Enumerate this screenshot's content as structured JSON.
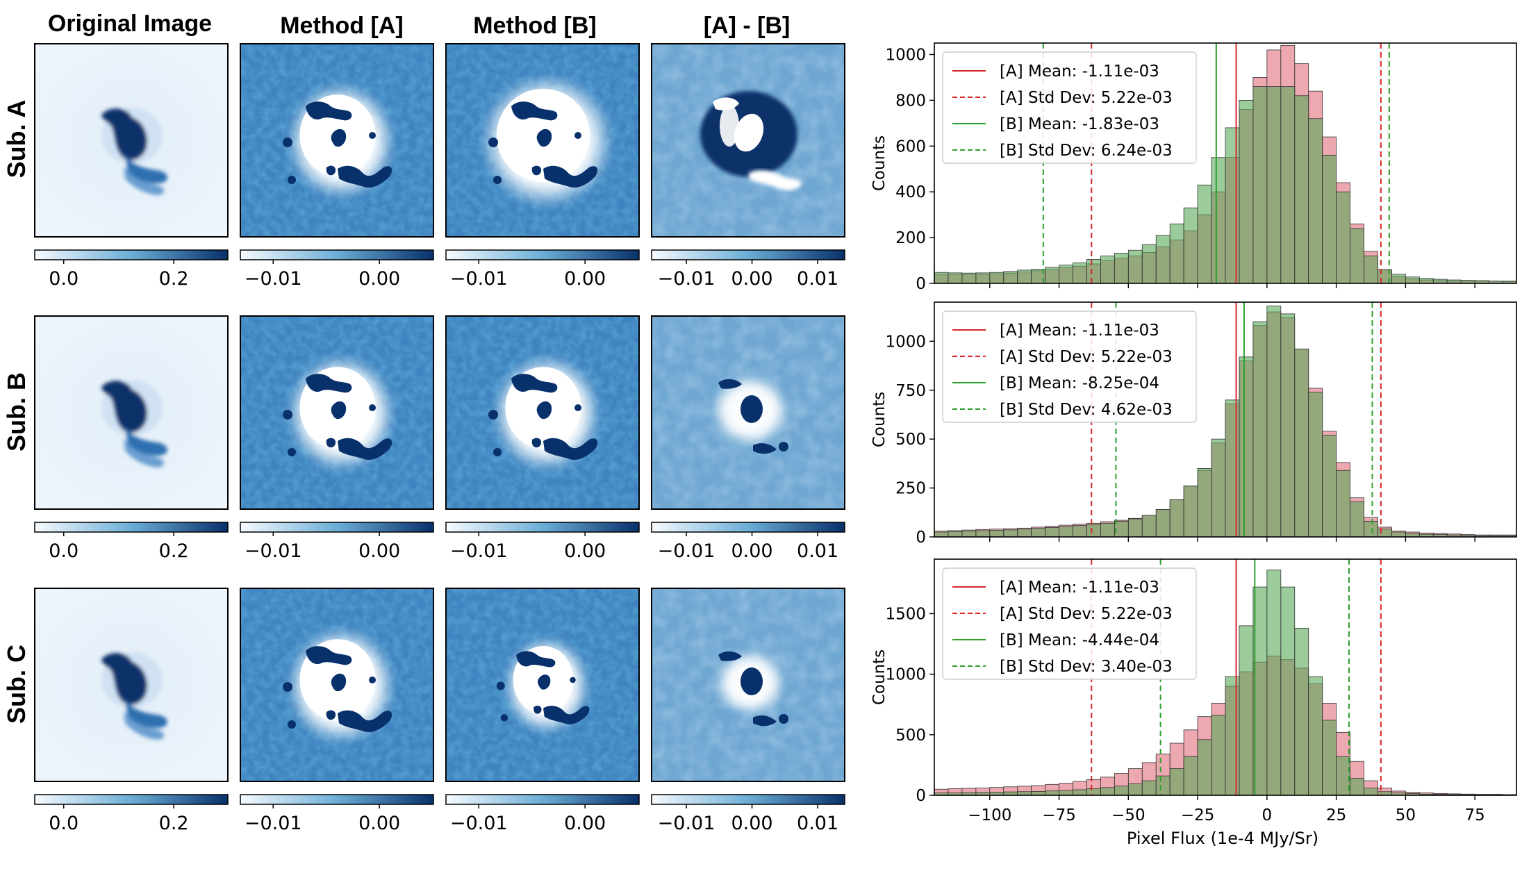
{
  "figure": {
    "column_titles": [
      "Original Image",
      "Method [A]",
      "Method [B]",
      "[A] - [B]"
    ],
    "row_labels": [
      "Sub. A",
      "Sub. B",
      "Sub. C"
    ],
    "colormap": {
      "low": "#f7fbff",
      "mid": "#6baed6",
      "high": "#08306b"
    },
    "colorbar_ticks": [
      [
        "0.0",
        "0.2"
      ],
      [
        "−0.01",
        "0.00"
      ],
      [
        "−0.01",
        "0.00"
      ],
      [
        "−0.01",
        "0.00",
        "0.01"
      ]
    ]
  },
  "chart_data": [
    {
      "type": "bar",
      "subtitle": "Sub. A",
      "ylabel": "Counts",
      "xlabel": "",
      "xlim": [
        -120,
        90
      ],
      "ylim": [
        0,
        1050
      ],
      "yticks": [
        0,
        200,
        400,
        600,
        800,
        1000
      ],
      "xticks": [
        -100,
        -75,
        -50,
        -25,
        0,
        25,
        50,
        75
      ],
      "colors": {
        "A": "#e78b95",
        "B": "#5aa95a",
        "bar_edge": "#333333"
      },
      "legend": [
        "[A] Mean: -1.11e-03",
        "[A] Std Dev: 5.22e-03",
        "[B] Mean: -1.83e-03",
        "[B] Std Dev: 6.24e-03"
      ],
      "vlines": {
        "A_mean": -11.1,
        "A_std": [
          -63.3,
          41.1
        ],
        "B_mean": -18.3,
        "B_std": [
          -80.7,
          44.1
        ]
      },
      "bin_edges": [
        -120,
        -115,
        -110,
        -105,
        -100,
        -95,
        -90,
        -85,
        -80,
        -75,
        -70,
        -65,
        -60,
        -55,
        -50,
        -45,
        -40,
        -35,
        -30,
        -25,
        -20,
        -15,
        -10,
        -5,
        0,
        5,
        10,
        15,
        20,
        25,
        30,
        35,
        40,
        45,
        50,
        55,
        60,
        65,
        70,
        75,
        80,
        85,
        90
      ],
      "series": [
        {
          "name": "[A]",
          "values": [
            40,
            40,
            40,
            40,
            42,
            45,
            50,
            55,
            60,
            68,
            75,
            85,
            100,
            110,
            120,
            135,
            160,
            190,
            230,
            300,
            400,
            550,
            760,
            900,
            1020,
            1040,
            960,
            840,
            640,
            440,
            260,
            140,
            60,
            30,
            20,
            15,
            12,
            10,
            10,
            10,
            10,
            8
          ]
        },
        {
          "name": "[B]",
          "values": [
            48,
            46,
            45,
            46,
            48,
            52,
            58,
            62,
            70,
            80,
            90,
            105,
            120,
            132,
            145,
            170,
            210,
            260,
            330,
            430,
            550,
            680,
            800,
            860,
            860,
            860,
            820,
            720,
            560,
            400,
            240,
            120,
            60,
            40,
            28,
            22,
            18,
            15,
            13,
            12,
            10,
            10
          ]
        }
      ]
    },
    {
      "type": "bar",
      "subtitle": "Sub. B",
      "ylabel": "Counts",
      "xlabel": "",
      "xlim": [
        -120,
        90
      ],
      "ylim": [
        0,
        1200
      ],
      "yticks": [
        0,
        250,
        500,
        750,
        1000
      ],
      "xticks": [
        -100,
        -75,
        -50,
        -25,
        0,
        25,
        50,
        75
      ],
      "colors": {
        "A": "#e78b95",
        "B": "#5aa95a",
        "bar_edge": "#333333"
      },
      "legend": [
        "[A] Mean: -1.11e-03",
        "[A] Std Dev: 5.22e-03",
        "[B] Mean: -8.25e-04",
        "[B] Std Dev: 4.62e-03"
      ],
      "vlines": {
        "A_mean": -11.1,
        "A_std": [
          -63.3,
          41.1
        ],
        "B_mean": -8.25,
        "B_std": [
          -54.5,
          38.0
        ]
      },
      "bin_edges": [
        -120,
        -115,
        -110,
        -105,
        -100,
        -95,
        -90,
        -85,
        -80,
        -75,
        -70,
        -65,
        -60,
        -55,
        -50,
        -45,
        -40,
        -35,
        -30,
        -25,
        -20,
        -15,
        -10,
        -5,
        0,
        5,
        10,
        15,
        20,
        25,
        30,
        35,
        40,
        45,
        50,
        55,
        60,
        65,
        70,
        75,
        80,
        85,
        90
      ],
      "series": [
        {
          "name": "[A]",
          "values": [
            30,
            32,
            35,
            38,
            40,
            42,
            45,
            50,
            55,
            60,
            65,
            70,
            78,
            85,
            95,
            110,
            140,
            190,
            260,
            340,
            480,
            680,
            900,
            1080,
            1150,
            1120,
            960,
            760,
            540,
            380,
            200,
            100,
            50,
            30,
            25,
            20,
            18,
            15,
            12,
            10,
            10,
            10
          ]
        },
        {
          "name": "[B]",
          "values": [
            25,
            28,
            30,
            32,
            34,
            36,
            40,
            44,
            48,
            52,
            58,
            64,
            70,
            80,
            92,
            110,
            140,
            190,
            260,
            350,
            500,
            700,
            920,
            1100,
            1180,
            1140,
            960,
            740,
            520,
            340,
            180,
            80,
            40,
            25,
            18,
            14,
            12,
            10,
            8,
            8,
            6,
            6
          ]
        }
      ]
    },
    {
      "type": "bar",
      "subtitle": "Sub. C",
      "ylabel": "Counts",
      "xlabel": "Pixel Flux (1e-4 MJy/Sr)",
      "xlim": [
        -120,
        90
      ],
      "ylim": [
        0,
        1950
      ],
      "yticks": [
        0,
        500,
        1000,
        1500
      ],
      "xticks": [
        -100,
        -75,
        -50,
        -25,
        0,
        25,
        50,
        75
      ],
      "xticklabels": [
        "−100",
        "−75",
        "−50",
        "−25",
        "0",
        "25",
        "50",
        "75"
      ],
      "colors": {
        "A": "#e78b95",
        "B": "#5aa95a",
        "bar_edge": "#333333"
      },
      "legend": [
        "[A] Mean: -1.11e-03",
        "[A] Std Dev: 5.22e-03",
        "[B] Mean: -4.44e-04",
        "[B] Std Dev: 3.40e-03"
      ],
      "vlines": {
        "A_mean": -11.1,
        "A_std": [
          -63.3,
          41.1
        ],
        "B_mean": -4.4,
        "B_std": [
          -38.4,
          29.6
        ]
      },
      "bin_edges": [
        -120,
        -115,
        -110,
        -105,
        -100,
        -95,
        -90,
        -85,
        -80,
        -75,
        -70,
        -65,
        -60,
        -55,
        -50,
        -45,
        -40,
        -35,
        -30,
        -25,
        -20,
        -15,
        -10,
        -5,
        0,
        5,
        10,
        15,
        20,
        25,
        30,
        35,
        40,
        45,
        50,
        55,
        60,
        65,
        70,
        75,
        80,
        85,
        90
      ],
      "series": [
        {
          "name": "[A]",
          "values": [
            50,
            55,
            58,
            60,
            65,
            70,
            75,
            80,
            90,
            100,
            115,
            130,
            150,
            180,
            220,
            270,
            340,
            430,
            540,
            650,
            760,
            900,
            1020,
            1100,
            1150,
            1120,
            1050,
            920,
            760,
            520,
            280,
            120,
            60,
            35,
            25,
            20,
            15,
            12,
            10,
            8,
            8,
            6
          ]
        },
        {
          "name": "[B]",
          "values": [
            20,
            20,
            22,
            24,
            26,
            28,
            30,
            32,
            36,
            40,
            46,
            54,
            64,
            76,
            95,
            120,
            160,
            220,
            320,
            460,
            660,
            980,
            1400,
            1720,
            1860,
            1720,
            1380,
            980,
            620,
            320,
            140,
            60,
            30,
            20,
            14,
            10,
            8,
            6,
            5,
            4,
            4,
            4
          ]
        }
      ]
    }
  ]
}
